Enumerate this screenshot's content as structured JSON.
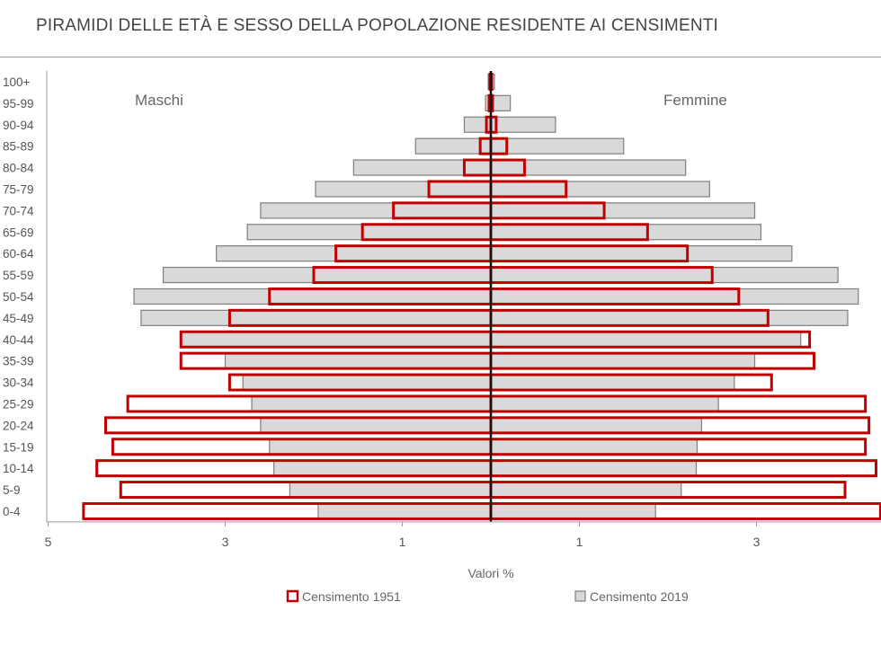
{
  "chart_data": {
    "type": "bar",
    "orientation": "horizontal",
    "title": "PIRAMIDI DELLE ETÀ E SESSO DELLA POPOLAZIONE RESIDENTE AI CENSIMENTI",
    "xlabel": "Valori %",
    "left_label": "Maschi",
    "right_label": "Femmine",
    "categories": [
      "100+",
      "95-99",
      "90-94",
      "85-89",
      "80-84",
      "75-79",
      "70-74",
      "65-69",
      "60-64",
      "55-59",
      "50-54",
      "45-49",
      "40-44",
      "35-39",
      "30-34",
      "25-29",
      "20-24",
      "15-19",
      "10-14",
      "5-9",
      "0-4"
    ],
    "xticks": [
      "5",
      "3",
      "1",
      "1",
      "3"
    ],
    "x_tick_values": [
      -5,
      -3,
      -1,
      1,
      3
    ],
    "xlim": [
      -5,
      4.4
    ],
    "legend_position": "bottom",
    "grid": false,
    "series": [
      {
        "name": "Censimento 2019",
        "style": "filled",
        "color": "#d9d9d9",
        "border": "#7f7f7f",
        "male": [
          0.03,
          0.06,
          0.3,
          0.85,
          1.55,
          1.98,
          2.6,
          2.75,
          3.1,
          3.7,
          4.03,
          3.95,
          3.5,
          3.0,
          2.8,
          2.7,
          2.6,
          2.5,
          2.45,
          2.27,
          1.95
        ],
        "female": [
          0.04,
          0.22,
          0.73,
          1.5,
          2.2,
          2.47,
          2.98,
          3.05,
          3.4,
          3.92,
          4.15,
          4.03,
          3.5,
          2.98,
          2.75,
          2.57,
          2.38,
          2.33,
          2.32,
          2.15,
          1.86
        ]
      },
      {
        "name": "Censimento 1951",
        "style": "outline",
        "color": "#c00000",
        "male": [
          0.01,
          0.02,
          0.05,
          0.12,
          0.3,
          0.7,
          1.1,
          1.45,
          1.75,
          2.0,
          2.5,
          2.95,
          3.5,
          3.5,
          2.95,
          4.1,
          4.35,
          4.27,
          4.45,
          4.18,
          4.6
        ],
        "female": [
          0.01,
          0.02,
          0.06,
          0.18,
          0.38,
          0.85,
          1.28,
          1.77,
          2.22,
          2.5,
          2.8,
          3.13,
          3.6,
          3.65,
          3.17,
          4.23,
          4.27,
          4.23,
          4.35,
          4.0,
          4.4
        ]
      }
    ]
  }
}
